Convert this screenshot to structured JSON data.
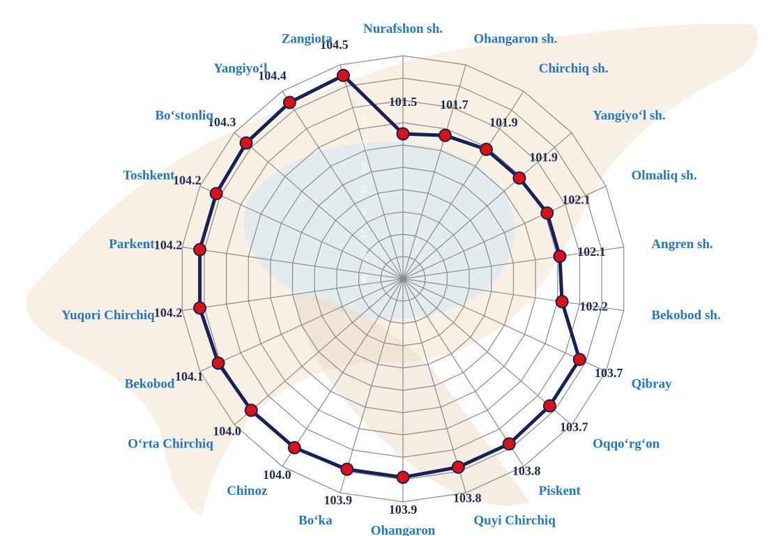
{
  "chart_data": {
    "type": "radar",
    "categories": [
      "Nurafshon sh.",
      "Ohangaron sh.",
      "Chirchiq sh.",
      "Yangiyo‘l sh.",
      "Olmaliq sh.",
      "Angren sh.",
      "Bekobod sh.",
      "Qibray",
      "Oqqo‘rg‘on",
      "Piskent",
      "Quyi Chirchiq",
      "Ohangaron",
      "Bo‘ka",
      "Chinoz",
      "O‘rta Chirchiq",
      "Bekobod",
      "Yuqori Chirchiq",
      "Parkent",
      "Toshkent",
      "Bo‘stonliq",
      "Yangiyo‘l",
      "Zangiota"
    ],
    "series": [
      {
        "values": [
          101.5,
          101.7,
          101.9,
          101.9,
          102.1,
          102.1,
          102.2,
          103.7,
          103.7,
          103.8,
          103.8,
          103.9,
          103.9,
          104.0,
          104.0,
          104.1,
          104.2,
          104.2,
          104.2,
          104.3,
          104.4,
          104.5
        ],
        "value_labels": [
          "101.5",
          "101.7",
          "101.9",
          "101.9",
          "102.1",
          "102.1",
          "102.2",
          "103.7",
          "103.7",
          "103.8",
          "103.8",
          "103.9",
          "103.9",
          "104.0",
          "104.0",
          "104.1",
          "104.2",
          "104.2",
          "104.2",
          "104.3",
          "104.4",
          "104.5"
        ],
        "line_color": "#14215a",
        "marker_color": "#e01010"
      }
    ],
    "radial_range": [
      95,
      105
    ],
    "radial_ticks": [
      95,
      96,
      97,
      98,
      99,
      100,
      101,
      102,
      103,
      104,
      105
    ],
    "grid": true,
    "label_color": "#1f78c8",
    "value_label_color": "#1b2a4e"
  }
}
